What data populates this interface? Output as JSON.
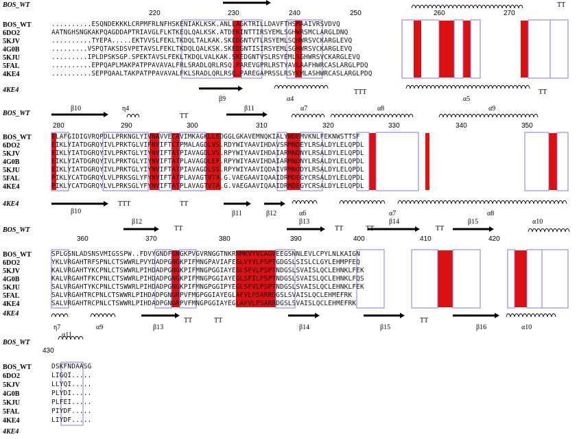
{
  "blocks": [
    {
      "ref_label": "BOS_WT",
      "numbers": [
        "220",
        "230",
        "240",
        "250",
        "260",
        "270"
      ],
      "rows": [
        {
          "name": "BOS_WT",
          "seq": "..........ESQNDEKKKLCRPMFRLNFHSKENIAKLKSK.ANLLAGKTRILLDAVFTHSMAAIVRSVDVQ"
        },
        {
          "name": "6DO2",
          "seq": "AATNGHSNGKAKPQAGDDAPTRIAVGLFLKTKEQLQALKSK.ATDEKINTTIRSYEMLSGHWRSMCLARGLDNQ"
        },
        {
          "name": "5KJV",
          "seq": "..........TYEPA.....EKTVVSLFEKLTKDQLTALKAK.SKEDGNTVTLRSYEMLSQHWRSVCKARGLEVQ"
        },
        {
          "name": "4G0B",
          "seq": ".........VSPQTAKSDSVPETAVSLFEKLTKDQLQALKSK.SKEDGNTISIRSYEMLSGHWRSVCKARGLEVQ"
        },
        {
          "name": "5KJU",
          "seq": ".........IPLDPSKSGP.SPEKTAVSLFEKLTKDQLVALKAK.SKEDGNTVSLRSYEMLSGHWRSVCKARGLEVQ"
        },
        {
          "name": "5FAL",
          "seq": "..........EPPQAPLMAKPATPPAVAVALFRLSRADLQRLRSQ.PAREVGPRLRSTYAVLAAFHWRCASLARGLPDQ"
        },
        {
          "name": "4KE4",
          "seq": "..........SEPPQAALTAKPATPPAVAVALFKLSRADLQRLRSQ.PAREGAPRSSLRSYEMLASHWRCASLARGLPDQ"
        },
        {
          "name": "4KE4",
          "seq": "",
          "italic": true
        }
      ],
      "ss_top": [
        "β9",
        "α4",
        "α5",
        "TT"
      ],
      "ss_bottom": [
        "β9",
        "α4",
        "TTT",
        "α5",
        "TT"
      ]
    },
    {
      "ref_label": "BOS_WT",
      "numbers": [
        "280",
        "290",
        "300",
        "310",
        "320",
        "330",
        "340",
        "350"
      ],
      "rows": [
        {
          "name": "BOS_WT",
          "seq": "ELAFGIDIGVRQPDLLPRKNGLYIVNAVVECAVIMKAGKLLEDGGLGKAVEMNQKIALYNDEMVKNLFEKNWSTTSF"
        },
        {
          "name": "6DO2",
          "seq": "EIKLYIATDGRQYIVLPRKTGLVIFNVIFTCTPMALAGDLVS.RDYWIYAAVIHDAVSRMNDEYLRSALDYLELQPDL"
        },
        {
          "name": "5KJV",
          "seq": "EIKLYIATDGRQYIVLPRKTGLYIYNVIFTATPIAVAGDLVS.RPYWIYAAVIHDAIARMNDNYLRSALDYLELQPDL"
        },
        {
          "name": "4G0B",
          "seq": "EIKLYIATDGRQYIVLPRKTGLYIYNVIFTATPLAVAGDLEF.RPYWIYAAVIHDAIARMNDNYLRSALDYLELQPDL"
        },
        {
          "name": "5KJU",
          "seq": "EIKLYIATDGRQYIVLPRKTGLYIYNVIFTATPIAVAGDLSS.RPYWIYAAVIQDAIVRMNDDYLRSALDYLELQPDL"
        },
        {
          "name": "5FAL",
          "seq": "PIKLYCATDGRQYLVLPRKSGLYFYNVIFTATPLAVAGTVTA.G.VAEGAAVIQAAIDRMDEGYCRSALDYLELQPDL"
        },
        {
          "name": "4KE4",
          "seq": "PIKLYCATDGRQYLVLPRKSGLYFYNVIFTATPLAVAGTVTA.G.VAEGAAVIQAAIDRMDEGYCRSALDYLELQPDL"
        },
        {
          "name": "4KE4",
          "seq": "",
          "italic": true
        }
      ],
      "ss_top": [
        "β10",
        "η4",
        "TT",
        "β11",
        "α7",
        "α8",
        "α9"
      ],
      "ss_bottom": [
        "β10",
        "TTT",
        "TT",
        "β11",
        "β12",
        "α6",
        "α7",
        "α8"
      ]
    },
    {
      "ref_label": "BOS_WT",
      "numbers": [
        "360",
        "370",
        "380",
        "390",
        "400",
        "410",
        "420"
      ],
      "rows": [
        {
          "name": "BOS_WT",
          "seq": "SPLGSNLADSNSVMIGSSPW..FDVYGNDFGNGKPVGVRNGGTNKRNMKVYVCAGVEEGSNNLEVLCPYLNLKAIGN"
        },
        {
          "name": "6DO2",
          "seq": "YKLVRGAHTRFSPNLCTSWWRLPVYDADPGNGKPIFMNGPAVIAFEGLVYVLPSPTGDGSLSISLCLGYLEHMPFEQ"
        },
        {
          "name": "5KJV",
          "seq": "KALVRGAHTYKCPNLCTSWWRLPIHDADPGNGKPIFMNGPGGIAYEGLSFVLPSPTNDGSLSVAISLQCLEHNKLFEK"
        },
        {
          "name": "4G0B",
          "seq": "KALVRGAHTFKCPNLCTSWWRLPIHDADPGNGKPIFMNGPGGIAYEGLSFILPSPTNDGSLSVAISLQCLEHNKLFQS"
        },
        {
          "name": "5KJU",
          "seq": "SALVRGAHTYKCPNLCTSWWRLPIHDADPGNGKPIFMNGPGGIPYEGLSFVLPSPTNDGSLSVAISLQCLEHNKLFEK"
        },
        {
          "name": "5FAL",
          "seq": "SALVRGAHTRCPNLCTSWWRLPIHDADPGNGRPVFMGPGGIAYEGLAFVLPSARRDGSLSVAISLQCLEHMEFRK"
        },
        {
          "name": "4KE4",
          "seq": "SALVRGAHTRCPNLCTSWWRLPIHDADPGNGRPVFMNGPGGIAYEGLAFVLPSARRDGSLSVAISLQCLEHMEFRK"
        },
        {
          "name": "4KE4",
          "seq": "",
          "italic": true
        }
      ],
      "ss_top": [
        "β12",
        "TT",
        "β13",
        "TT",
        "TT",
        "β14",
        "TT",
        "β15",
        "α10"
      ],
      "ss_bottom": [
        "η7",
        "α9",
        "β13",
        "TT",
        "TT",
        "β14",
        "β15",
        "TT",
        "β16",
        "α10"
      ]
    },
    {
      "ref_label": "BOS_WT",
      "numbers": [
        "430"
      ],
      "rows": [
        {
          "name": "BOS_WT",
          "seq": "DSKFNDAASG"
        },
        {
          "name": "6DO2",
          "seq": "LIGQI....."
        },
        {
          "name": "5KJV",
          "seq": "LLYQI....."
        },
        {
          "name": "4G0B",
          "seq": "PLYDI....."
        },
        {
          "name": "5KJU",
          "seq": "PLFEI....."
        },
        {
          "name": "5FAL",
          "seq": "PIYDF....."
        },
        {
          "name": "4KE4",
          "seq": "LIYDF....."
        },
        {
          "name": "4KE4",
          "seq": "",
          "italic": true
        }
      ],
      "ss_top": [
        "α11"
      ],
      "ss_bottom": []
    }
  ],
  "colors": {
    "identical_bg": "#dd1111",
    "identical_fg": "#ffffff",
    "similar_fg": "#e01818",
    "box_stroke": "#7a7ae6",
    "text": "#111111"
  }
}
